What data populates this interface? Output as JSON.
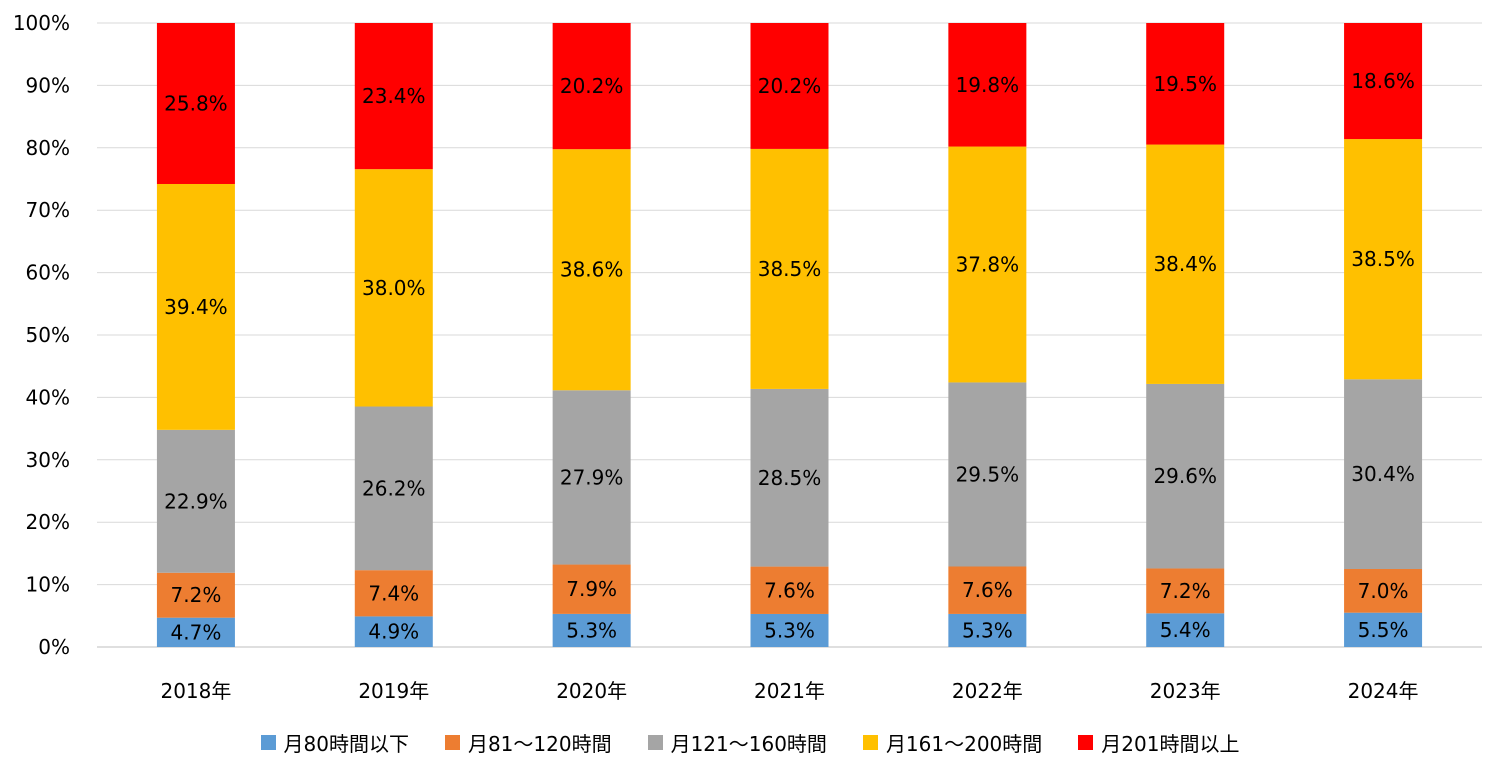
{
  "chart_data": {
    "type": "bar",
    "stacked": true,
    "percent": true,
    "categories": [
      "2018年",
      "2019年",
      "2020年",
      "2021年",
      "2022年",
      "2023年",
      "2024年"
    ],
    "series": [
      {
        "name": "月80時間以下",
        "color": "#5B9BD5",
        "values": [
          4.7,
          4.9,
          5.3,
          5.3,
          5.3,
          5.4,
          5.5
        ]
      },
      {
        "name": "月81〜120時間",
        "color": "#ED7D31",
        "values": [
          7.2,
          7.4,
          7.9,
          7.6,
          7.6,
          7.2,
          7.0
        ]
      },
      {
        "name": "月121〜160時間",
        "color": "#A5A5A5",
        "values": [
          22.9,
          26.2,
          27.9,
          28.5,
          29.5,
          29.6,
          30.4
        ]
      },
      {
        "name": "月161〜200時間",
        "color": "#FFC000",
        "values": [
          39.4,
          38.0,
          38.6,
          38.5,
          37.8,
          38.4,
          38.5
        ]
      },
      {
        "name": "月201時間以上",
        "color": "#FF0000",
        "values": [
          25.8,
          23.4,
          20.2,
          20.2,
          19.8,
          19.5,
          18.6
        ]
      }
    ],
    "yticks": [
      "0%",
      "10%",
      "20%",
      "30%",
      "40%",
      "50%",
      "60%",
      "70%",
      "80%",
      "90%",
      "100%"
    ],
    "ylim": [
      0,
      100
    ],
    "grid": true,
    "legend_position": "bottom"
  }
}
